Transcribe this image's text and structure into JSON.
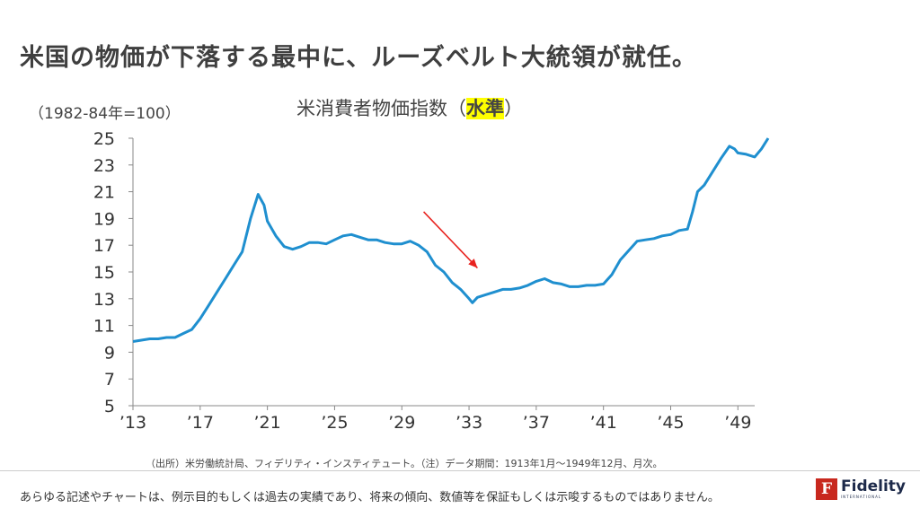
{
  "slide_title": "米国の物価が下落する最中に、ルーズベルト大統領が就任。",
  "unit_label": "（1982-84年=100）",
  "chart_title_prefix": "米消費者物価指数（",
  "chart_title_highlight": "水準",
  "chart_title_suffix": "）",
  "source_note": "（出所）米労働統計局、フィデリティ・インスティテュート。（注）データ期間：1913年1月～1949年12月、月次。",
  "disclaimer": "あらゆる記述やチャートは、例示目的もしくは過去の実績であり、将来の傾向、数値等を保証もしくは示唆するものではありません。",
  "logo": {
    "name": "Fidelity",
    "sub": "INTERNATIONAL",
    "mark": "F"
  },
  "colors": {
    "line": "#1f8fcf",
    "arrow": "#e8231f",
    "highlight": "#ffff00",
    "brand": "#c8281e"
  },
  "chart_data": {
    "type": "line",
    "x_unit": "year",
    "xlim": [
      1913.0,
      1950.0
    ],
    "ylim": [
      5,
      25
    ],
    "yticks": [
      5,
      7,
      9,
      11,
      13,
      15,
      17,
      19,
      21,
      23,
      25
    ],
    "xticks": [
      {
        "value": 1913,
        "label": "’13"
      },
      {
        "value": 1917,
        "label": "’17"
      },
      {
        "value": 1921,
        "label": "’21"
      },
      {
        "value": 1925,
        "label": "’25"
      },
      {
        "value": 1929,
        "label": "’29"
      },
      {
        "value": 1933,
        "label": "’33"
      },
      {
        "value": 1937,
        "label": "’37"
      },
      {
        "value": 1941,
        "label": "’41"
      },
      {
        "value": 1945,
        "label": "’45"
      },
      {
        "value": 1949,
        "label": "’49"
      }
    ],
    "grid": false,
    "series": [
      {
        "points": [
          [
            1913.0,
            9.8
          ],
          [
            1913.5,
            9.9
          ],
          [
            1914.0,
            10.0
          ],
          [
            1914.5,
            10.0
          ],
          [
            1915.0,
            10.1
          ],
          [
            1915.5,
            10.1
          ],
          [
            1916.0,
            10.4
          ],
          [
            1916.5,
            10.7
          ],
          [
            1917.0,
            11.5
          ],
          [
            1917.5,
            12.5
          ],
          [
            1918.0,
            13.5
          ],
          [
            1918.5,
            14.5
          ],
          [
            1919.0,
            15.5
          ],
          [
            1919.5,
            16.5
          ],
          [
            1920.0,
            19.0
          ],
          [
            1920.45,
            20.8
          ],
          [
            1920.8,
            20.0
          ],
          [
            1921.0,
            18.8
          ],
          [
            1921.5,
            17.7
          ],
          [
            1922.0,
            16.9
          ],
          [
            1922.5,
            16.7
          ],
          [
            1923.0,
            16.9
          ],
          [
            1923.5,
            17.2
          ],
          [
            1924.0,
            17.2
          ],
          [
            1924.5,
            17.1
          ],
          [
            1925.0,
            17.4
          ],
          [
            1925.5,
            17.7
          ],
          [
            1926.0,
            17.8
          ],
          [
            1926.5,
            17.6
          ],
          [
            1927.0,
            17.4
          ],
          [
            1927.5,
            17.4
          ],
          [
            1928.0,
            17.2
          ],
          [
            1928.5,
            17.1
          ],
          [
            1929.0,
            17.1
          ],
          [
            1929.5,
            17.3
          ],
          [
            1930.0,
            17.0
          ],
          [
            1930.5,
            16.5
          ],
          [
            1931.0,
            15.5
          ],
          [
            1931.5,
            15.0
          ],
          [
            1932.0,
            14.2
          ],
          [
            1932.5,
            13.7
          ],
          [
            1933.0,
            13.0
          ],
          [
            1933.2,
            12.7
          ],
          [
            1933.5,
            13.1
          ],
          [
            1934.0,
            13.3
          ],
          [
            1934.5,
            13.5
          ],
          [
            1935.0,
            13.7
          ],
          [
            1935.5,
            13.7
          ],
          [
            1936.0,
            13.8
          ],
          [
            1936.5,
            14.0
          ],
          [
            1937.0,
            14.3
          ],
          [
            1937.5,
            14.5
          ],
          [
            1938.0,
            14.2
          ],
          [
            1938.5,
            14.1
          ],
          [
            1939.0,
            13.9
          ],
          [
            1939.5,
            13.9
          ],
          [
            1940.0,
            14.0
          ],
          [
            1940.5,
            14.0
          ],
          [
            1941.0,
            14.1
          ],
          [
            1941.5,
            14.8
          ],
          [
            1942.0,
            15.9
          ],
          [
            1942.5,
            16.6
          ],
          [
            1943.0,
            17.3
          ],
          [
            1943.5,
            17.4
          ],
          [
            1944.0,
            17.5
          ],
          [
            1944.5,
            17.7
          ],
          [
            1945.0,
            17.8
          ],
          [
            1945.5,
            18.1
          ],
          [
            1946.0,
            18.2
          ],
          [
            1946.3,
            19.5
          ],
          [
            1946.6,
            21.0
          ],
          [
            1947.0,
            21.5
          ],
          [
            1947.5,
            22.5
          ],
          [
            1948.0,
            23.5
          ],
          [
            1948.5,
            24.4
          ],
          [
            1948.8,
            24.2
          ],
          [
            1949.0,
            23.9
          ],
          [
            1949.5,
            23.8
          ],
          [
            1950.0,
            23.6
          ],
          [
            1950.4,
            24.2
          ],
          [
            1950.8,
            25.0
          ]
        ]
      }
    ],
    "annotation_arrow": {
      "from": [
        1930.3,
        19.5
      ],
      "to": [
        1933.5,
        15.3
      ]
    }
  }
}
